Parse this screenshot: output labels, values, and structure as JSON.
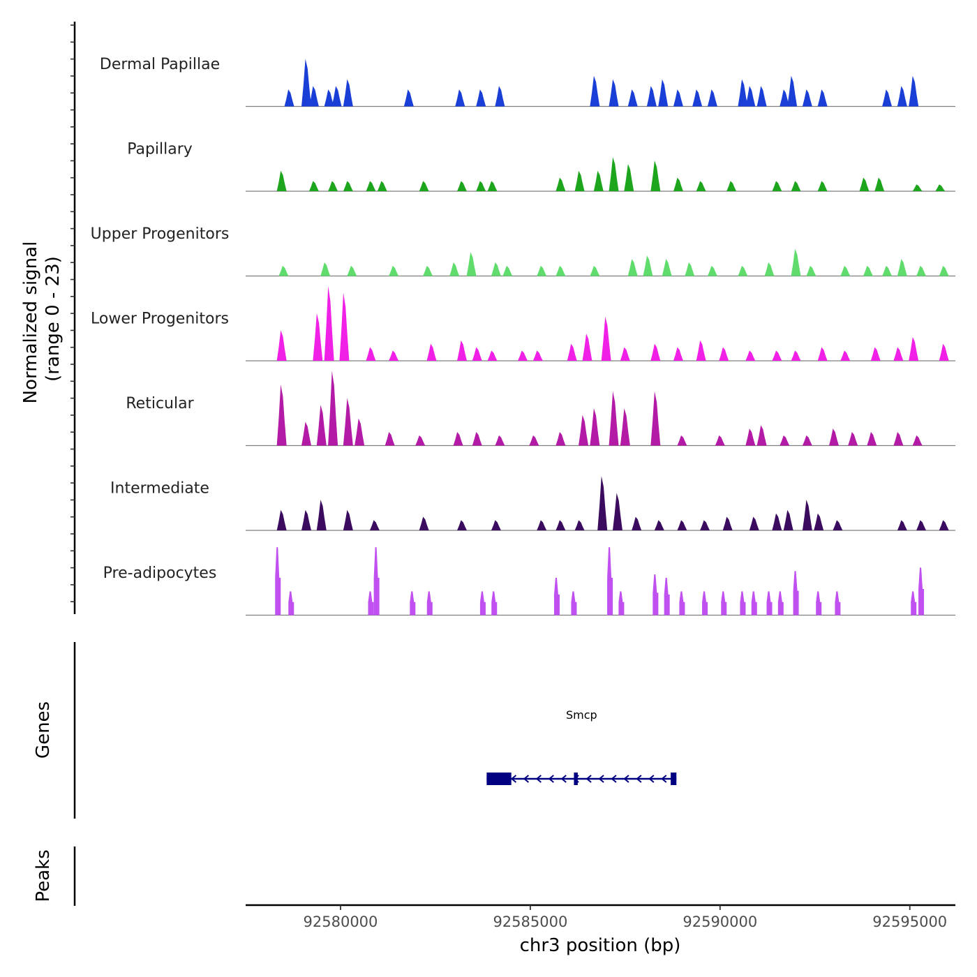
{
  "chart_data": {
    "type": "area",
    "title": "",
    "chromosome": "chr3",
    "xlabel": "chr3 position (bp)",
    "xlim": [
      92577500,
      92596200
    ],
    "xticks": [
      92580000,
      92585000,
      92590000,
      92595000
    ],
    "signal_axis_label": "Normalized signal",
    "signal_axis_sublabel": "(range 0 - 23)",
    "ylim": [
      0,
      23
    ],
    "genes_label": "Genes",
    "peaks_label": "Peaks",
    "baseline_color": "#7f7f7f",
    "tracks": [
      {
        "name": "Dermal Papillae",
        "color": "#1a3fd6",
        "peaks": [
          [
            92578650,
            5
          ],
          [
            92579100,
            14
          ],
          [
            92579300,
            6
          ],
          [
            92579700,
            5
          ],
          [
            92579900,
            6
          ],
          [
            92580200,
            8
          ],
          [
            92581800,
            5
          ],
          [
            92583150,
            5
          ],
          [
            92583700,
            5
          ],
          [
            92584200,
            6
          ],
          [
            92586700,
            9
          ],
          [
            92587200,
            8
          ],
          [
            92587700,
            5
          ],
          [
            92588200,
            6
          ],
          [
            92588500,
            8
          ],
          [
            92588900,
            5
          ],
          [
            92589400,
            5
          ],
          [
            92589800,
            5
          ],
          [
            92590600,
            8
          ],
          [
            92590800,
            6
          ],
          [
            92591100,
            6
          ],
          [
            92591700,
            5
          ],
          [
            92591900,
            9
          ],
          [
            92592300,
            5
          ],
          [
            92592700,
            5
          ],
          [
            92594400,
            5
          ],
          [
            92594800,
            6
          ],
          [
            92595100,
            9
          ]
        ]
      },
      {
        "name": "Papillary",
        "color": "#1ea51e",
        "peaks": [
          [
            92578450,
            6
          ],
          [
            92579300,
            3
          ],
          [
            92579800,
            3
          ],
          [
            92580200,
            3
          ],
          [
            92580800,
            3
          ],
          [
            92581100,
            3
          ],
          [
            92582200,
            3
          ],
          [
            92583200,
            3
          ],
          [
            92583700,
            3
          ],
          [
            92584000,
            3
          ],
          [
            92585800,
            4
          ],
          [
            92586300,
            6
          ],
          [
            92586800,
            6
          ],
          [
            92587200,
            10
          ],
          [
            92587600,
            8
          ],
          [
            92588300,
            9
          ],
          [
            92588900,
            4
          ],
          [
            92589500,
            3
          ],
          [
            92590300,
            3
          ],
          [
            92591500,
            3
          ],
          [
            92592000,
            3
          ],
          [
            92592700,
            3
          ],
          [
            92593800,
            4
          ],
          [
            92594200,
            4
          ],
          [
            92595200,
            2
          ],
          [
            92595800,
            2
          ]
        ]
      },
      {
        "name": "Upper Progenitors",
        "color": "#5fdc6b",
        "peaks": [
          [
            92578500,
            3
          ],
          [
            92579600,
            4
          ],
          [
            92580300,
            3
          ],
          [
            92581400,
            3
          ],
          [
            92582300,
            3
          ],
          [
            92583000,
            4
          ],
          [
            92583450,
            7
          ],
          [
            92584100,
            4
          ],
          [
            92584400,
            3
          ],
          [
            92585300,
            3
          ],
          [
            92585800,
            3
          ],
          [
            92586700,
            3
          ],
          [
            92587700,
            5
          ],
          [
            92588100,
            6
          ],
          [
            92588600,
            5
          ],
          [
            92589200,
            4
          ],
          [
            92589800,
            3
          ],
          [
            92590600,
            3
          ],
          [
            92591300,
            4
          ],
          [
            92592000,
            8
          ],
          [
            92592400,
            3
          ],
          [
            92593300,
            3
          ],
          [
            92593900,
            3
          ],
          [
            92594400,
            3
          ],
          [
            92594800,
            5
          ],
          [
            92595300,
            3
          ],
          [
            92595900,
            3
          ]
        ]
      },
      {
        "name": "Lower Progenitors",
        "color": "#f020e6",
        "peaks": [
          [
            92578450,
            9
          ],
          [
            92579400,
            14
          ],
          [
            92579700,
            22
          ],
          [
            92580100,
            20
          ],
          [
            92580800,
            4
          ],
          [
            92581400,
            3
          ],
          [
            92582400,
            5
          ],
          [
            92583200,
            6
          ],
          [
            92583600,
            4
          ],
          [
            92584000,
            3
          ],
          [
            92584800,
            3
          ],
          [
            92585200,
            3
          ],
          [
            92586100,
            5
          ],
          [
            92586500,
            8
          ],
          [
            92587000,
            13
          ],
          [
            92587500,
            4
          ],
          [
            92588300,
            5
          ],
          [
            92588900,
            4
          ],
          [
            92589500,
            6
          ],
          [
            92590100,
            4
          ],
          [
            92590800,
            3
          ],
          [
            92591500,
            3
          ],
          [
            92592000,
            3
          ],
          [
            92592700,
            4
          ],
          [
            92593300,
            3
          ],
          [
            92594100,
            4
          ],
          [
            92594700,
            4
          ],
          [
            92595100,
            7
          ],
          [
            92595900,
            5
          ]
        ]
      },
      {
        "name": "Reticular",
        "color": "#b31aa6",
        "peaks": [
          [
            92578450,
            18
          ],
          [
            92579100,
            7
          ],
          [
            92579500,
            12
          ],
          [
            92579800,
            22
          ],
          [
            92580200,
            14
          ],
          [
            92580500,
            8
          ],
          [
            92581300,
            4
          ],
          [
            92582100,
            3
          ],
          [
            92583100,
            4
          ],
          [
            92583600,
            4
          ],
          [
            92584200,
            3
          ],
          [
            92585100,
            3
          ],
          [
            92585800,
            4
          ],
          [
            92586400,
            9
          ],
          [
            92586700,
            11
          ],
          [
            92587200,
            16
          ],
          [
            92587500,
            11
          ],
          [
            92588300,
            16
          ],
          [
            92589000,
            3
          ],
          [
            92590000,
            3
          ],
          [
            92590800,
            5
          ],
          [
            92591100,
            6
          ],
          [
            92591700,
            3
          ],
          [
            92592300,
            3
          ],
          [
            92593000,
            5
          ],
          [
            92593500,
            4
          ],
          [
            92594000,
            4
          ],
          [
            92594700,
            4
          ],
          [
            92595200,
            3
          ]
        ]
      },
      {
        "name": "Intermediate",
        "color": "#3a0b5e",
        "peaks": [
          [
            92578450,
            6
          ],
          [
            92579100,
            6
          ],
          [
            92579500,
            9
          ],
          [
            92580200,
            6
          ],
          [
            92580900,
            3
          ],
          [
            92582200,
            4
          ],
          [
            92583200,
            3
          ],
          [
            92584100,
            3
          ],
          [
            92585300,
            3
          ],
          [
            92585800,
            3
          ],
          [
            92586300,
            3
          ],
          [
            92586900,
            16
          ],
          [
            92587300,
            11
          ],
          [
            92587800,
            4
          ],
          [
            92588400,
            3
          ],
          [
            92589000,
            3
          ],
          [
            92589600,
            3
          ],
          [
            92590200,
            4
          ],
          [
            92590900,
            4
          ],
          [
            92591500,
            5
          ],
          [
            92591800,
            6
          ],
          [
            92592300,
            9
          ],
          [
            92592600,
            5
          ],
          [
            92593100,
            3
          ],
          [
            92594800,
            3
          ],
          [
            92595300,
            3
          ],
          [
            92595900,
            3
          ]
        ]
      },
      {
        "name": "Pre-adipocytes",
        "color": "#c050f0",
        "peaks": [
          [
            92578350,
            20
          ],
          [
            92578700,
            7
          ],
          [
            92580800,
            7
          ],
          [
            92580950,
            20
          ],
          [
            92581900,
            7
          ],
          [
            92582350,
            7
          ],
          [
            92583750,
            7
          ],
          [
            92584050,
            7
          ],
          [
            92585700,
            11
          ],
          [
            92586150,
            7
          ],
          [
            92587100,
            20
          ],
          [
            92587400,
            7
          ],
          [
            92588300,
            12
          ],
          [
            92588600,
            11
          ],
          [
            92589000,
            7
          ],
          [
            92589600,
            7
          ],
          [
            92590100,
            7
          ],
          [
            92590600,
            7
          ],
          [
            92590900,
            7
          ],
          [
            92591300,
            7
          ],
          [
            92591600,
            7
          ],
          [
            92592000,
            13
          ],
          [
            92592600,
            7
          ],
          [
            92593100,
            7
          ],
          [
            92595100,
            7
          ],
          [
            92595300,
            14
          ]
        ]
      }
    ],
    "genes": [
      {
        "name": "Smcp",
        "strand": "-",
        "start": 92583850,
        "end": 92588850,
        "exons": [
          [
            92583850,
            92584500
          ],
          [
            92586150,
            92586250
          ],
          [
            92588700,
            92588850
          ]
        ]
      }
    ],
    "peaks_track": []
  }
}
